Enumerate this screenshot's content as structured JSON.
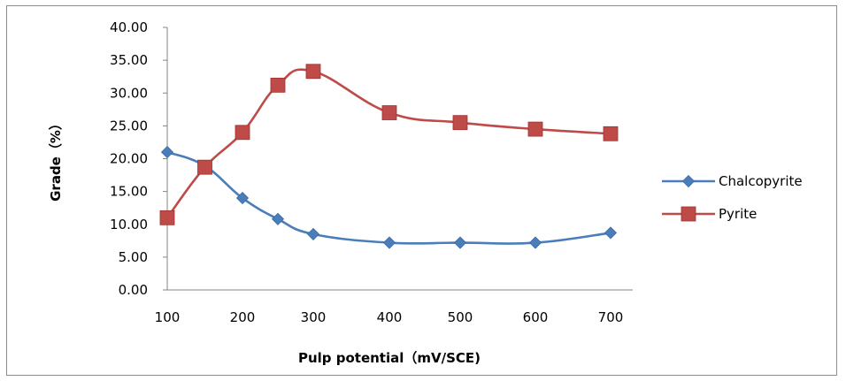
{
  "chart_data": {
    "type": "line",
    "title": "",
    "xlabel": "Pulp potential（mV/SCE)",
    "ylabel": "Grade（%）",
    "x": [
      100,
      150,
      200,
      250,
      300,
      400,
      500,
      600,
      700
    ],
    "x_tick_labels": [
      "100",
      "200",
      "300",
      "400",
      "500",
      "600",
      "700"
    ],
    "y_tick_labels": [
      "0.00",
      "5.00",
      "10.00",
      "15.00",
      "20.00",
      "25.00",
      "30.00",
      "35.00",
      "40.00"
    ],
    "ylim": [
      0,
      40
    ],
    "grid": false,
    "legend_position": "right",
    "series": [
      {
        "name": "Chalcopyrite",
        "color": "#4a7ebb",
        "marker": "diamond",
        "values": [
          21.0,
          18.9,
          14.0,
          10.8,
          8.5,
          7.2,
          7.2,
          7.2,
          8.7
        ]
      },
      {
        "name": "Pyrite",
        "color": "#be4b48",
        "marker": "square",
        "values": [
          11.0,
          18.7,
          24.0,
          31.2,
          33.3,
          27.0,
          25.5,
          24.5,
          23.8
        ]
      }
    ]
  }
}
